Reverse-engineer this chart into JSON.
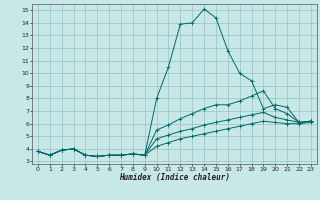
{
  "title": "",
  "xlabel": "Humidex (Indice chaleur)",
  "ylabel": "",
  "bg_color": "#c8e8e8",
  "grid_color": "#8cb8b8",
  "line_color": "#006868",
  "xlim": [
    -0.5,
    23.5
  ],
  "ylim": [
    2.8,
    15.5
  ],
  "xticks": [
    0,
    1,
    2,
    3,
    4,
    5,
    6,
    7,
    8,
    9,
    10,
    11,
    12,
    13,
    14,
    15,
    16,
    17,
    18,
    19,
    20,
    21,
    22,
    23
  ],
  "yticks": [
    3,
    4,
    5,
    6,
    7,
    8,
    9,
    10,
    11,
    12,
    13,
    14,
    15
  ],
  "curves": [
    {
      "x": [
        0,
        1,
        2,
        3,
        4,
        5,
        6,
        7,
        8,
        9,
        10,
        11,
        12,
        13,
        14,
        15,
        16,
        17,
        18,
        19,
        20,
        21,
        22,
        23
      ],
      "y": [
        3.8,
        3.5,
        3.9,
        4.0,
        3.5,
        3.4,
        3.5,
        3.5,
        3.6,
        3.5,
        8.0,
        10.5,
        13.9,
        14.0,
        15.1,
        14.4,
        11.8,
        10.0,
        9.4,
        7.2,
        7.5,
        7.3,
        6.1,
        6.2
      ]
    },
    {
      "x": [
        0,
        1,
        2,
        3,
        4,
        5,
        6,
        7,
        8,
        9,
        10,
        11,
        12,
        13,
        14,
        15,
        16,
        17,
        18,
        19,
        20,
        21,
        22,
        23
      ],
      "y": [
        3.8,
        3.5,
        3.9,
        4.0,
        3.5,
        3.4,
        3.5,
        3.5,
        3.6,
        3.5,
        5.5,
        5.9,
        6.4,
        6.8,
        7.2,
        7.5,
        7.5,
        7.8,
        8.2,
        8.6,
        7.2,
        6.8,
        6.1,
        6.2
      ]
    },
    {
      "x": [
        0,
        1,
        2,
        3,
        4,
        5,
        6,
        7,
        8,
        9,
        10,
        11,
        12,
        13,
        14,
        15,
        16,
        17,
        18,
        19,
        20,
        21,
        22,
        23
      ],
      "y": [
        3.8,
        3.5,
        3.9,
        4.0,
        3.5,
        3.4,
        3.5,
        3.5,
        3.6,
        3.5,
        4.8,
        5.1,
        5.4,
        5.6,
        5.9,
        6.1,
        6.3,
        6.5,
        6.7,
        6.9,
        6.5,
        6.3,
        6.1,
        6.2
      ]
    },
    {
      "x": [
        0,
        1,
        2,
        3,
        4,
        5,
        6,
        7,
        8,
        9,
        10,
        11,
        12,
        13,
        14,
        15,
        16,
        17,
        18,
        19,
        20,
        21,
        22,
        23
      ],
      "y": [
        3.8,
        3.5,
        3.9,
        4.0,
        3.5,
        3.4,
        3.5,
        3.5,
        3.6,
        3.5,
        4.2,
        4.5,
        4.8,
        5.0,
        5.2,
        5.4,
        5.6,
        5.8,
        6.0,
        6.2,
        6.1,
        6.0,
        6.0,
        6.1
      ]
    }
  ]
}
